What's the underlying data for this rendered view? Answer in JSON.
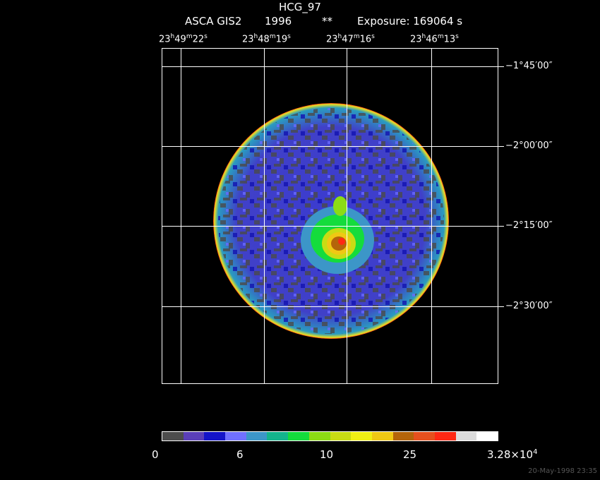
{
  "header": {
    "object": "HCG_97",
    "instrument": "ASCA GIS2",
    "year": "1996",
    "flag": "**",
    "exposure": "Exposure: 169064 s"
  },
  "ra_labels": [
    {
      "h": "23",
      "m": "49",
      "s": "22"
    },
    {
      "h": "23",
      "m": "48",
      "s": "19"
    },
    {
      "h": "23",
      "m": "47",
      "s": "16"
    },
    {
      "h": "23",
      "m": "46",
      "s": "13"
    }
  ],
  "dec_labels": [
    "−1°45′00″",
    "−2°00′00″",
    "−2°15′00″",
    "−2°30′00″"
  ],
  "colorbar": {
    "colors": [
      "#4d4d4d",
      "#5a3fb8",
      "#1414c8",
      "#7070ff",
      "#3c96c8",
      "#14b48c",
      "#14dc3c",
      "#8cdc14",
      "#c8dc14",
      "#f0f014",
      "#f0c814",
      "#b4640a",
      "#e6501e",
      "#ff2814",
      "#dcdcdc",
      "#ffffff"
    ],
    "ticks": [
      "0",
      "6",
      "10",
      "25"
    ],
    "max_mantissa": "3.28×10",
    "max_exp": "4"
  },
  "timestamp": "20-May-1998 23:35"
}
